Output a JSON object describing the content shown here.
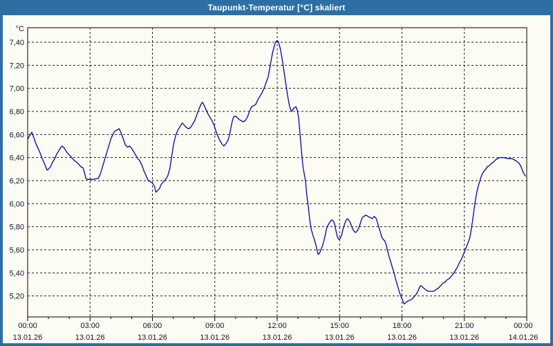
{
  "window": {
    "title": "Taupunkt-Temperatur [°C] skaliert",
    "title_bar_color": "#2d6fa3",
    "frame_color": "#2d6fa3",
    "background_color": "#fcfcf4"
  },
  "chart_data": {
    "type": "line",
    "title": "Taupunkt-Temperatur [°C] skaliert",
    "y_unit_label": "°C",
    "line_color": "#0000b0",
    "grid": "dashed",
    "legend": "none",
    "ylim": [
      5.0,
      7.53
    ],
    "xlim_minutes": [
      0,
      1440
    ],
    "y_ticks": [
      {
        "value": 7.4,
        "label": "7,40"
      },
      {
        "value": 7.2,
        "label": "7,20"
      },
      {
        "value": 7.0,
        "label": "7,00"
      },
      {
        "value": 6.8,
        "label": "6,80"
      },
      {
        "value": 6.6,
        "label": "6,60"
      },
      {
        "value": 6.4,
        "label": "6,40"
      },
      {
        "value": 6.2,
        "label": "6,20"
      },
      {
        "value": 6.0,
        "label": "6,00"
      },
      {
        "value": 5.8,
        "label": "5,80"
      },
      {
        "value": 5.6,
        "label": "5,60"
      },
      {
        "value": 5.4,
        "label": "5,40"
      },
      {
        "value": 5.2,
        "label": "5,20"
      }
    ],
    "x_ticks": [
      {
        "hour": 0,
        "time": "00:00",
        "date": "13.01.26"
      },
      {
        "hour": 3,
        "time": "03:00",
        "date": "13.01.26"
      },
      {
        "hour": 6,
        "time": "06:00",
        "date": "13.01.26"
      },
      {
        "hour": 9,
        "time": "09:00",
        "date": "13.01.26"
      },
      {
        "hour": 12,
        "time": "12:00",
        "date": "13.01.26"
      },
      {
        "hour": 15,
        "time": "15:00",
        "date": "13.01.26"
      },
      {
        "hour": 18,
        "time": "18:00",
        "date": "13.01.26"
      },
      {
        "hour": 21,
        "time": "21:00",
        "date": "13.01.26"
      },
      {
        "hour": 24,
        "time": "00:00",
        "date": "14.01.26"
      }
    ],
    "series_name": "Taupunkt-Temperatur",
    "series": [
      [
        0,
        6.56
      ],
      [
        6,
        6.59
      ],
      [
        12,
        6.62
      ],
      [
        18,
        6.57
      ],
      [
        24,
        6.52
      ],
      [
        30,
        6.48
      ],
      [
        36,
        6.44
      ],
      [
        42,
        6.39
      ],
      [
        48,
        6.35
      ],
      [
        52,
        6.32
      ],
      [
        56,
        6.29
      ],
      [
        60,
        6.3
      ],
      [
        66,
        6.32
      ],
      [
        72,
        6.36
      ],
      [
        78,
        6.39
      ],
      [
        84,
        6.43
      ],
      [
        90,
        6.46
      ],
      [
        96,
        6.49
      ],
      [
        100,
        6.5
      ],
      [
        106,
        6.48
      ],
      [
        112,
        6.45
      ],
      [
        118,
        6.43
      ],
      [
        124,
        6.41
      ],
      [
        130,
        6.39
      ],
      [
        136,
        6.37
      ],
      [
        142,
        6.36
      ],
      [
        148,
        6.34
      ],
      [
        154,
        6.32
      ],
      [
        160,
        6.31
      ],
      [
        164,
        6.27
      ],
      [
        168,
        6.22
      ],
      [
        172,
        6.21
      ],
      [
        188,
        6.21
      ],
      [
        204,
        6.22
      ],
      [
        210,
        6.26
      ],
      [
        216,
        6.32
      ],
      [
        222,
        6.38
      ],
      [
        228,
        6.44
      ],
      [
        234,
        6.5
      ],
      [
        240,
        6.56
      ],
      [
        246,
        6.6
      ],
      [
        252,
        6.63
      ],
      [
        258,
        6.64
      ],
      [
        264,
        6.65
      ],
      [
        270,
        6.61
      ],
      [
        276,
        6.56
      ],
      [
        282,
        6.51
      ],
      [
        288,
        6.49
      ],
      [
        294,
        6.5
      ],
      [
        300,
        6.48
      ],
      [
        306,
        6.45
      ],
      [
        312,
        6.42
      ],
      [
        318,
        6.39
      ],
      [
        324,
        6.37
      ],
      [
        330,
        6.33
      ],
      [
        336,
        6.28
      ],
      [
        342,
        6.24
      ],
      [
        348,
        6.2
      ],
      [
        354,
        6.19
      ],
      [
        360,
        6.18
      ],
      [
        366,
        6.15
      ],
      [
        370,
        6.1
      ],
      [
        374,
        6.11
      ],
      [
        380,
        6.13
      ],
      [
        386,
        6.17
      ],
      [
        392,
        6.19
      ],
      [
        398,
        6.21
      ],
      [
        404,
        6.24
      ],
      [
        410,
        6.3
      ],
      [
        416,
        6.42
      ],
      [
        422,
        6.53
      ],
      [
        428,
        6.6
      ],
      [
        434,
        6.64
      ],
      [
        440,
        6.67
      ],
      [
        446,
        6.7
      ],
      [
        452,
        6.68
      ],
      [
        458,
        6.66
      ],
      [
        464,
        6.65
      ],
      [
        470,
        6.66
      ],
      [
        476,
        6.69
      ],
      [
        482,
        6.72
      ],
      [
        488,
        6.77
      ],
      [
        494,
        6.82
      ],
      [
        500,
        6.86
      ],
      [
        504,
        6.88
      ],
      [
        508,
        6.86
      ],
      [
        514,
        6.82
      ],
      [
        520,
        6.78
      ],
      [
        526,
        6.75
      ],
      [
        532,
        6.72
      ],
      [
        538,
        6.68
      ],
      [
        542,
        6.64
      ],
      [
        548,
        6.59
      ],
      [
        554,
        6.55
      ],
      [
        560,
        6.52
      ],
      [
        566,
        6.5
      ],
      [
        572,
        6.52
      ],
      [
        578,
        6.55
      ],
      [
        582,
        6.59
      ],
      [
        586,
        6.65
      ],
      [
        590,
        6.71
      ],
      [
        594,
        6.75
      ],
      [
        598,
        6.76
      ],
      [
        604,
        6.75
      ],
      [
        610,
        6.73
      ],
      [
        616,
        6.72
      ],
      [
        622,
        6.71
      ],
      [
        628,
        6.72
      ],
      [
        634,
        6.75
      ],
      [
        640,
        6.8
      ],
      [
        646,
        6.84
      ],
      [
        652,
        6.85
      ],
      [
        658,
        6.86
      ],
      [
        664,
        6.9
      ],
      [
        670,
        6.93
      ],
      [
        676,
        6.96
      ],
      [
        682,
        7.0
      ],
      [
        688,
        7.05
      ],
      [
        694,
        7.1
      ],
      [
        700,
        7.2
      ],
      [
        706,
        7.3
      ],
      [
        710,
        7.35
      ],
      [
        714,
        7.39
      ],
      [
        718,
        7.41
      ],
      [
        722,
        7.41
      ],
      [
        726,
        7.38
      ],
      [
        730,
        7.33
      ],
      [
        734,
        7.26
      ],
      [
        738,
        7.18
      ],
      [
        742,
        7.1
      ],
      [
        746,
        7.02
      ],
      [
        750,
        6.94
      ],
      [
        754,
        6.87
      ],
      [
        758,
        6.82
      ],
      [
        762,
        6.8
      ],
      [
        768,
        6.83
      ],
      [
        774,
        6.84
      ],
      [
        778,
        6.81
      ],
      [
        782,
        6.74
      ],
      [
        786,
        6.6
      ],
      [
        790,
        6.46
      ],
      [
        794,
        6.33
      ],
      [
        798,
        6.26
      ],
      [
        802,
        6.19
      ],
      [
        806,
        6.06
      ],
      [
        810,
        5.97
      ],
      [
        814,
        5.86
      ],
      [
        818,
        5.78
      ],
      [
        822,
        5.74
      ],
      [
        826,
        5.7
      ],
      [
        830,
        5.66
      ],
      [
        834,
        5.61
      ],
      [
        838,
        5.56
      ],
      [
        842,
        5.57
      ],
      [
        846,
        5.6
      ],
      [
        850,
        5.63
      ],
      [
        854,
        5.67
      ],
      [
        858,
        5.72
      ],
      [
        862,
        5.78
      ],
      [
        866,
        5.81
      ],
      [
        870,
        5.83
      ],
      [
        874,
        5.85
      ],
      [
        878,
        5.86
      ],
      [
        882,
        5.85
      ],
      [
        886,
        5.82
      ],
      [
        890,
        5.76
      ],
      [
        894,
        5.71
      ],
      [
        898,
        5.69
      ],
      [
        902,
        5.7
      ],
      [
        906,
        5.73
      ],
      [
        910,
        5.78
      ],
      [
        914,
        5.82
      ],
      [
        918,
        5.85
      ],
      [
        922,
        5.87
      ],
      [
        926,
        5.86
      ],
      [
        930,
        5.84
      ],
      [
        934,
        5.81
      ],
      [
        938,
        5.78
      ],
      [
        942,
        5.76
      ],
      [
        946,
        5.75
      ],
      [
        950,
        5.76
      ],
      [
        954,
        5.78
      ],
      [
        958,
        5.81
      ],
      [
        962,
        5.85
      ],
      [
        966,
        5.88
      ],
      [
        970,
        5.89
      ],
      [
        976,
        5.9
      ],
      [
        982,
        5.89
      ],
      [
        988,
        5.88
      ],
      [
        994,
        5.87
      ],
      [
        1000,
        5.89
      ],
      [
        1006,
        5.87
      ],
      [
        1010,
        5.83
      ],
      [
        1014,
        5.79
      ],
      [
        1018,
        5.75
      ],
      [
        1022,
        5.71
      ],
      [
        1026,
        5.69
      ],
      [
        1030,
        5.68
      ],
      [
        1034,
        5.65
      ],
      [
        1038,
        5.6
      ],
      [
        1042,
        5.55
      ],
      [
        1046,
        5.51
      ],
      [
        1050,
        5.47
      ],
      [
        1054,
        5.43
      ],
      [
        1058,
        5.39
      ],
      [
        1062,
        5.34
      ],
      [
        1066,
        5.3
      ],
      [
        1070,
        5.26
      ],
      [
        1074,
        5.22
      ],
      [
        1078,
        5.19
      ],
      [
        1082,
        5.16
      ],
      [
        1086,
        5.13
      ],
      [
        1090,
        5.14
      ],
      [
        1094,
        5.15
      ],
      [
        1100,
        5.16
      ],
      [
        1108,
        5.17
      ],
      [
        1114,
        5.19
      ],
      [
        1120,
        5.21
      ],
      [
        1126,
        5.24
      ],
      [
        1130,
        5.27
      ],
      [
        1134,
        5.29
      ],
      [
        1138,
        5.28
      ],
      [
        1142,
        5.27
      ],
      [
        1146,
        5.26
      ],
      [
        1150,
        5.25
      ],
      [
        1156,
        5.24
      ],
      [
        1164,
        5.24
      ],
      [
        1172,
        5.24
      ],
      [
        1180,
        5.26
      ],
      [
        1186,
        5.27
      ],
      [
        1192,
        5.29
      ],
      [
        1198,
        5.31
      ],
      [
        1204,
        5.32
      ],
      [
        1210,
        5.34
      ],
      [
        1216,
        5.35
      ],
      [
        1222,
        5.37
      ],
      [
        1228,
        5.39
      ],
      [
        1234,
        5.42
      ],
      [
        1240,
        5.45
      ],
      [
        1246,
        5.49
      ],
      [
        1252,
        5.52
      ],
      [
        1256,
        5.55
      ],
      [
        1260,
        5.58
      ],
      [
        1264,
        5.61
      ],
      [
        1268,
        5.64
      ],
      [
        1272,
        5.67
      ],
      [
        1276,
        5.71
      ],
      [
        1280,
        5.78
      ],
      [
        1284,
        5.86
      ],
      [
        1288,
        5.95
      ],
      [
        1292,
        6.03
      ],
      [
        1296,
        6.1
      ],
      [
        1300,
        6.15
      ],
      [
        1304,
        6.19
      ],
      [
        1308,
        6.23
      ],
      [
        1312,
        6.26
      ],
      [
        1316,
        6.28
      ],
      [
        1320,
        6.29
      ],
      [
        1326,
        6.32
      ],
      [
        1332,
        6.33
      ],
      [
        1338,
        6.35
      ],
      [
        1344,
        6.36
      ],
      [
        1350,
        6.38
      ],
      [
        1356,
        6.39
      ],
      [
        1362,
        6.4
      ],
      [
        1374,
        6.4
      ],
      [
        1386,
        6.39
      ],
      [
        1398,
        6.39
      ],
      [
        1404,
        6.38
      ],
      [
        1410,
        6.37
      ],
      [
        1414,
        6.36
      ],
      [
        1418,
        6.35
      ],
      [
        1422,
        6.33
      ],
      [
        1426,
        6.3
      ],
      [
        1430,
        6.27
      ],
      [
        1434,
        6.25
      ],
      [
        1436,
        6.24
      ]
    ]
  }
}
